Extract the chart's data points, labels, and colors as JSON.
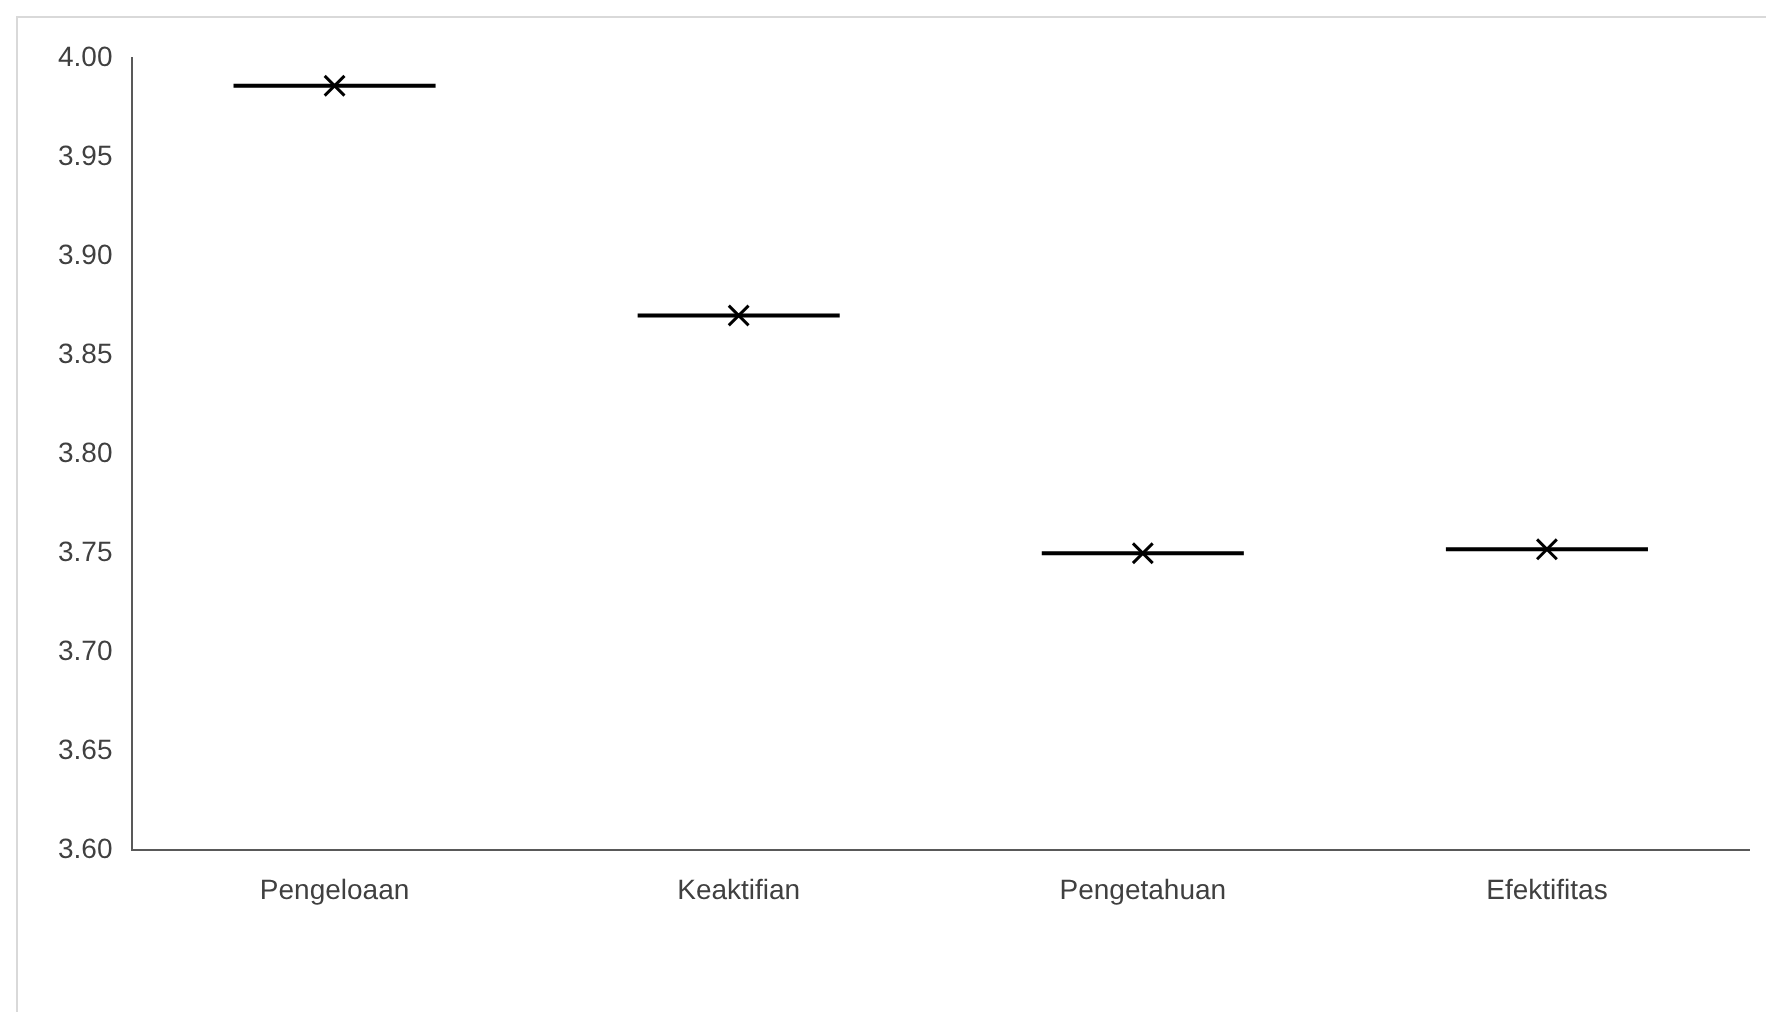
{
  "chart_data": {
    "type": "box",
    "categories": [
      "Pengeloaan",
      "Keaktifian",
      "Pengetahuan",
      "Efektifitas"
    ],
    "boxes": [
      {
        "low": 3.986,
        "q1": 3.986,
        "median": 3.986,
        "q3": 3.986,
        "high": 3.986,
        "mean": 3.986
      },
      {
        "low": 3.87,
        "q1": 3.87,
        "median": 3.87,
        "q3": 3.87,
        "high": 3.87,
        "mean": 3.87
      },
      {
        "low": 3.75,
        "q1": 3.75,
        "median": 3.75,
        "q3": 3.75,
        "high": 3.75,
        "mean": 3.75
      },
      {
        "low": 3.752,
        "q1": 3.752,
        "median": 3.752,
        "q3": 3.752,
        "high": 3.752,
        "mean": 3.752
      }
    ],
    "color": "#000000",
    "ylim": [
      3.6,
      4.0
    ],
    "yticks": [
      {
        "value": 3.6,
        "label": "3.60"
      },
      3.65,
      {
        "value": 3.7,
        "label": "3.70"
      },
      3.75,
      {
        "value": 3.8,
        "label": "3.80"
      },
      3.85,
      {
        "value": 3.9,
        "label": "3.90"
      },
      3.95,
      {
        "value": 4.0,
        "label": "4.00"
      }
    ],
    "grid": false,
    "legend": false,
    "marker": "cross"
  }
}
